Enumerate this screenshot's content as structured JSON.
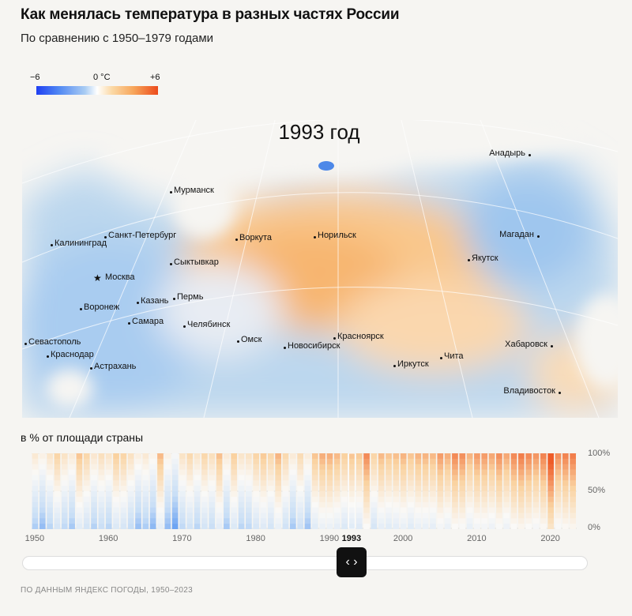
{
  "title": "Как менялась температура в разных частях России",
  "subtitle": "По сравнению с 1950–1979 годами",
  "legend": {
    "min": "−6",
    "mid": "0 °C",
    "max": "+6"
  },
  "colors": {
    "cold": "#1f3ff2",
    "neutral": "#ffffff",
    "warm": "#ec4b1c",
    "background": "#f6f5f2"
  },
  "map": {
    "year_label": "1993 год",
    "cities": [
      {
        "name": "Мурманск",
        "marker": "dot"
      },
      {
        "name": "Санкт-Петербург",
        "marker": "dot"
      },
      {
        "name": "Калининград",
        "marker": "dot"
      },
      {
        "name": "Сыктывкар",
        "marker": "dot"
      },
      {
        "name": "Москва",
        "marker": "star"
      },
      {
        "name": "Воронеж",
        "marker": "dot"
      },
      {
        "name": "Казань",
        "marker": "dot"
      },
      {
        "name": "Пермь",
        "marker": "dot"
      },
      {
        "name": "Самара",
        "marker": "dot"
      },
      {
        "name": "Челябинск",
        "marker": "dot"
      },
      {
        "name": "Севастополь",
        "marker": "dot"
      },
      {
        "name": "Краснодар",
        "marker": "dot"
      },
      {
        "name": "Астрахань",
        "marker": "dot"
      },
      {
        "name": "Воркута",
        "marker": "dot"
      },
      {
        "name": "Норильск",
        "marker": "dot"
      },
      {
        "name": "Омск",
        "marker": "dot"
      },
      {
        "name": "Новосибирск",
        "marker": "dot"
      },
      {
        "name": "Красноярск",
        "marker": "dot"
      },
      {
        "name": "Иркутск",
        "marker": "dot"
      },
      {
        "name": "Чита",
        "marker": "dot"
      },
      {
        "name": "Якутск",
        "marker": "dot"
      },
      {
        "name": "Магадан",
        "marker": "dot"
      },
      {
        "name": "Анадырь",
        "marker": "dot"
      },
      {
        "name": "Хабаровск",
        "marker": "dot"
      },
      {
        "name": "Владивосток",
        "marker": "dot"
      }
    ]
  },
  "strip": {
    "label": "в % от площади страны",
    "y_ticks": [
      "100%",
      "50%",
      "0%"
    ],
    "x_ticks": [
      "1950",
      "1960",
      "1970",
      "1980",
      "1990",
      "1993",
      "2000",
      "2010",
      "2020"
    ],
    "selected_year": "1993"
  },
  "slider": {
    "handle_icon": "left-right-arrows-icon",
    "handle_glyph": "‹ ›"
  },
  "source": "ПО ДАННЫМ ЯНДЕКС ПОГОДЫ, 1950–2023",
  "chart_data": {
    "type": "heatmap",
    "xlabel": "",
    "ylabel": "в % от площади страны",
    "ylim": [
      0,
      100
    ],
    "x": [
      1950,
      1951,
      1952,
      1953,
      1954,
      1955,
      1956,
      1957,
      1958,
      1959,
      1960,
      1961,
      1962,
      1963,
      1964,
      1965,
      1966,
      1967,
      1968,
      1969,
      1970,
      1971,
      1972,
      1973,
      1974,
      1975,
      1976,
      1977,
      1978,
      1979,
      1980,
      1981,
      1982,
      1983,
      1984,
      1985,
      1986,
      1987,
      1988,
      1989,
      1990,
      1991,
      1992,
      1993,
      1994,
      1995,
      1996,
      1997,
      1998,
      1999,
      2000,
      2001,
      2002,
      2003,
      2004,
      2005,
      2006,
      2007,
      2008,
      2009,
      2010,
      2011,
      2012,
      2013,
      2014,
      2015,
      2016,
      2017,
      2018,
      2019,
      2020,
      2021,
      2022,
      2023
    ],
    "values": [
      -0.8,
      -1.2,
      -0.6,
      0.2,
      -0.5,
      -0.9,
      0.6,
      0.1,
      -0.7,
      -0.3,
      -0.6,
      0.4,
      0.2,
      -0.4,
      -1.1,
      -0.8,
      -1.3,
      0.8,
      -1.2,
      -1.8,
      -0.5,
      0.0,
      -0.6,
      0.1,
      -0.3,
      0.7,
      -0.9,
      0.4,
      -0.6,
      -0.5,
      0.2,
      0.5,
      0.1,
      0.9,
      0.0,
      -0.9,
      -0.1,
      -1.0,
      0.6,
      1.0,
      1.0,
      0.8,
      0.4,
      0.6,
      0.5,
      1.6,
      0.2,
      0.8,
      0.6,
      0.7,
      0.9,
      0.6,
      0.9,
      0.9,
      0.8,
      1.3,
      1.0,
      1.6,
      1.5,
      0.9,
      1.3,
      1.3,
      1.1,
      1.5,
      1.1,
      1.6,
      1.8,
      1.6,
      1.4,
      1.7,
      2.7,
      1.5,
      1.7,
      1.8
    ],
    "value_unit": "°C anomaly vs 1950–1979",
    "selected": 1993
  }
}
